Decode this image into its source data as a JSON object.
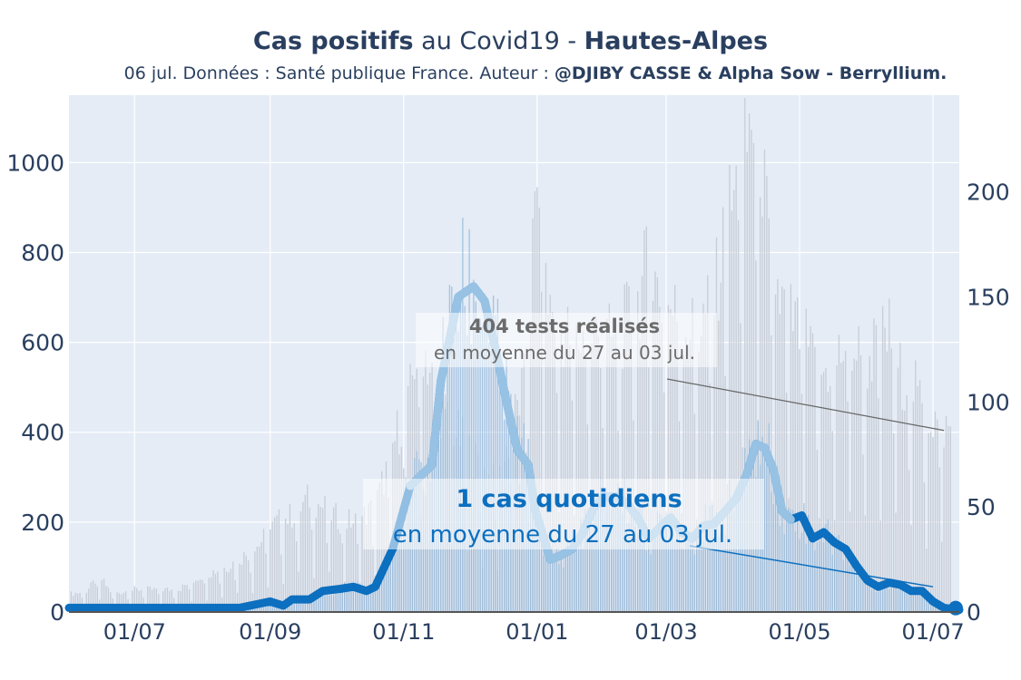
{
  "header": {
    "title_bold_1": "Cas positifs",
    "title_mid": " au Covid19 - ",
    "title_bold_2": "Hautes-Alpes",
    "subtitle_plain": "06 jul. Données : Santé publique France. Auteur : ",
    "subtitle_bold": "@DJIBY CASSE & Alpha Sow - Berryllium."
  },
  "chart_data": {
    "type": "bar",
    "title": "Cas positifs au Covid19 - Hautes-Alpes",
    "subtitle": "06 jul. Données : Santé publique France. Auteur : @DJIBY CASSE & Alpha Sow - Berryllium.",
    "x_range_days": [
      0,
      407
    ],
    "x_ticks": [
      {
        "label": "01/07",
        "day": 30
      },
      {
        "label": "01/09",
        "day": 92
      },
      {
        "label": "01/11",
        "day": 153
      },
      {
        "label": "01/01",
        "day": 214
      },
      {
        "label": "01/03",
        "day": 273
      },
      {
        "label": "01/05",
        "day": 334
      },
      {
        "label": "01/07",
        "day": 395
      }
    ],
    "y_left": {
      "range": [
        0,
        1150
      ],
      "ticks": [
        0,
        200,
        400,
        600,
        800,
        1000
      ]
    },
    "y_right": {
      "range": [
        0,
        246
      ],
      "ticks": [
        0,
        50,
        100,
        150,
        200
      ]
    },
    "colors": {
      "plot_bg": "#e5ecf6",
      "grid": "#ffffff",
      "tests_bars": "#c8cdd6",
      "cases_bars": "#8fb5d9",
      "cases_line": "#0c6fbf",
      "cases_line_light": "#a6cbe8",
      "axis_text": "#2a3f5f",
      "tests_annot": "#6b6b6b",
      "cases_annot": "#0c6fbf"
    },
    "tests_series": {
      "name": "tests réalisés",
      "axis": "left",
      "anchors": [
        [
          0,
          40
        ],
        [
          8,
          45
        ],
        [
          12,
          70
        ],
        [
          15,
          72
        ],
        [
          20,
          40
        ],
        [
          30,
          50
        ],
        [
          50,
          50
        ],
        [
          60,
          80
        ],
        [
          72,
          100
        ],
        [
          85,
          140
        ],
        [
          95,
          200
        ],
        [
          102,
          215
        ],
        [
          110,
          255
        ],
        [
          117,
          230
        ],
        [
          124,
          205
        ],
        [
          132,
          200
        ],
        [
          140,
          235
        ],
        [
          146,
          330
        ],
        [
          150,
          400
        ],
        [
          155,
          450
        ],
        [
          158,
          560
        ],
        [
          162,
          600
        ],
        [
          166,
          520
        ],
        [
          170,
          450
        ],
        [
          180,
          380
        ],
        [
          188,
          320
        ],
        [
          196,
          280
        ],
        [
          203,
          420
        ],
        [
          209,
          520
        ],
        [
          212,
          800
        ],
        [
          215,
          980
        ],
        [
          218,
          700
        ],
        [
          225,
          630
        ],
        [
          232,
          600
        ],
        [
          240,
          620
        ],
        [
          250,
          600
        ],
        [
          260,
          690
        ],
        [
          265,
          780
        ],
        [
          270,
          700
        ],
        [
          280,
          650
        ],
        [
          287,
          620
        ],
        [
          295,
          700
        ],
        [
          302,
          890
        ],
        [
          308,
          980
        ],
        [
          312,
          1100
        ],
        [
          316,
          1050
        ],
        [
          320,
          800
        ],
        [
          326,
          680
        ],
        [
          332,
          640
        ],
        [
          340,
          560
        ],
        [
          345,
          530
        ],
        [
          351,
          560
        ],
        [
          356,
          600
        ],
        [
          360,
          580
        ],
        [
          365,
          560
        ],
        [
          370,
          600
        ],
        [
          375,
          620
        ],
        [
          380,
          530
        ],
        [
          386,
          500
        ],
        [
          392,
          440
        ],
        [
          398,
          420
        ],
        [
          403,
          400
        ]
      ]
    },
    "cases_series": {
      "name": "cas quotidiens",
      "axis": "right",
      "anchors": [
        [
          0,
          2
        ],
        [
          10,
          2
        ],
        [
          20,
          2
        ],
        [
          30,
          2
        ],
        [
          50,
          2
        ],
        [
          78,
          2
        ],
        [
          92,
          5
        ],
        [
          98,
          3
        ],
        [
          102,
          6
        ],
        [
          110,
          6
        ],
        [
          116,
          10
        ],
        [
          124,
          11
        ],
        [
          130,
          12
        ],
        [
          136,
          10
        ],
        [
          140,
          12
        ],
        [
          148,
          30
        ],
        [
          156,
          60
        ],
        [
          166,
          70
        ],
        [
          170,
          110
        ],
        [
          178,
          150
        ],
        [
          185,
          155
        ],
        [
          190,
          148
        ],
        [
          195,
          125
        ],
        [
          200,
          100
        ],
        [
          205,
          77
        ],
        [
          210,
          70
        ],
        [
          213,
          49
        ],
        [
          220,
          25
        ],
        [
          225,
          27
        ],
        [
          230,
          30
        ],
        [
          235,
          38
        ],
        [
          240,
          50
        ],
        [
          245,
          55
        ],
        [
          250,
          55
        ],
        [
          255,
          52
        ],
        [
          260,
          45
        ],
        [
          265,
          35
        ],
        [
          270,
          40
        ],
        [
          275,
          45
        ],
        [
          280,
          38
        ],
        [
          285,
          35
        ],
        [
          290,
          41
        ],
        [
          295,
          42
        ],
        [
          300,
          48
        ],
        [
          305,
          54
        ],
        [
          310,
          66
        ],
        [
          314,
          80
        ],
        [
          318,
          78
        ],
        [
          322,
          68
        ],
        [
          326,
          48
        ],
        [
          330,
          44
        ],
        [
          335,
          46
        ],
        [
          340,
          35
        ],
        [
          345,
          38
        ],
        [
          350,
          33
        ],
        [
          355,
          30
        ],
        [
          360,
          22
        ],
        [
          365,
          15
        ],
        [
          370,
          12
        ],
        [
          375,
          14
        ],
        [
          380,
          13
        ],
        [
          385,
          10
        ],
        [
          390,
          10
        ],
        [
          395,
          5
        ],
        [
          400,
          2
        ],
        [
          407,
          1
        ]
      ]
    },
    "annotations": {
      "tests_value": "404 tests réalisés",
      "tests_period": "en moyenne du 27 au 03 jul.",
      "cases_value": "1 cas quotidiens",
      "cases_period": "en moyenne du 27 au 03 jul."
    }
  }
}
